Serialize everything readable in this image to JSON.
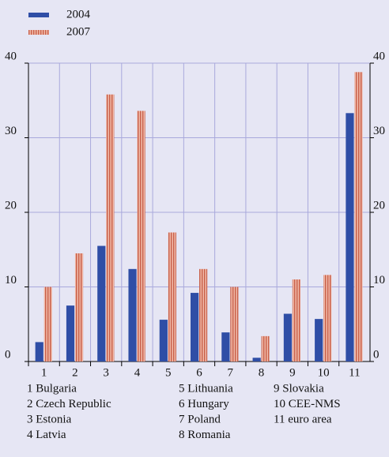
{
  "chart_data": {
    "type": "bar",
    "categories": [
      "1",
      "2",
      "3",
      "4",
      "5",
      "6",
      "7",
      "8",
      "9",
      "10",
      "11"
    ],
    "series": [
      {
        "name": "2004",
        "color": "#2f4ea6",
        "values": [
          2.6,
          7.5,
          15.5,
          12.4,
          5.6,
          9.2,
          3.9,
          0.5,
          6.4,
          5.7,
          33.3
        ]
      },
      {
        "name": "2007",
        "color": "#e79c88",
        "values": [
          10,
          14.5,
          35.8,
          33.6,
          17.3,
          12.4,
          10,
          3.4,
          11,
          11.6,
          38.8
        ]
      }
    ],
    "ylim": [
      0,
      40
    ],
    "yticks": [
      0,
      10,
      20,
      30,
      40
    ],
    "y2lim": [
      0,
      40
    ],
    "y2ticks": [
      0,
      10,
      20,
      30,
      40
    ],
    "grid": true,
    "legend": "top-left",
    "notes": [
      "1 Bulgaria",
      "2 Czech Republic",
      "3 Estonia",
      "4 Latvia",
      "5 Lithuania",
      "6 Hungary",
      "7 Poland",
      "8 Romania",
      "9 Slovakia",
      "10 CEE-NMS",
      "11 euro area"
    ]
  }
}
